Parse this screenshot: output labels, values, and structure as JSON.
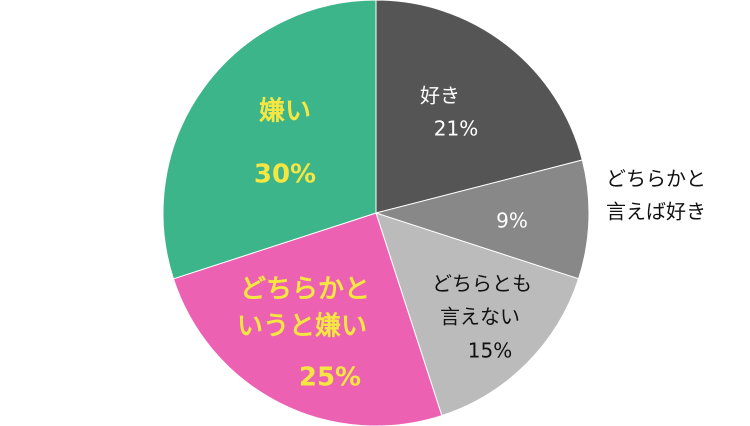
{
  "chart_data": {
    "type": "pie",
    "start": "top",
    "direction": "clockwise",
    "slices": [
      {
        "label_lines": [
          "好き"
        ],
        "value": 21,
        "value_label": "21%",
        "color": "#555555",
        "text_color": "#ffffff",
        "pct_color": "#ffffff",
        "bold": false,
        "label_outside": false
      },
      {
        "label_lines": [
          "どちらかと",
          "言えば好き"
        ],
        "value": 9,
        "value_label": "9%",
        "color": "#888888",
        "text_color": "#111111",
        "pct_color": "#ffffff",
        "bold": false,
        "label_outside": true
      },
      {
        "label_lines": [
          "どちらとも",
          "言えない"
        ],
        "value": 15,
        "value_label": "15%",
        "color": "#bbbbbb",
        "text_color": "#111111",
        "pct_color": "#111111",
        "bold": false,
        "label_outside": false
      },
      {
        "label_lines": [
          "どちらかと",
          "いうと嫌い"
        ],
        "value": 25,
        "value_label": "25%",
        "color": "#ec61b2",
        "text_color": "#f5e642",
        "pct_color": "#f5e642",
        "bold": true,
        "label_outside": false
      },
      {
        "label_lines": [
          "嫌い"
        ],
        "value": 30,
        "value_label": "30%",
        "color": "#3db58a",
        "text_color": "#f5e642",
        "pct_color": "#f5e642",
        "bold": true,
        "label_outside": false
      }
    ]
  }
}
